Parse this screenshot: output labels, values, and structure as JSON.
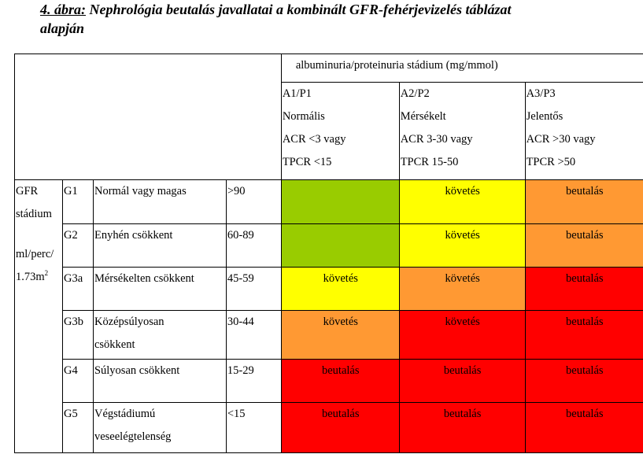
{
  "caption": {
    "figure_label": "4. ábra:",
    "text_line1": " Nephrológia beutalás javallatai a kombinált GFR-fehérjevizelés táblázat",
    "text_line2": "alapján"
  },
  "header": {
    "albuminuria_title": "albuminuria/proteinuria stádium (mg/mmol)",
    "columns": [
      {
        "code": "A1/P1",
        "name": "Normális",
        "acr": "ACR <3 vagy",
        "tpcr": "TPCR <15"
      },
      {
        "code": "A2/P2",
        "name": "Mérsékelt",
        "acr": "ACR 3-30 vagy",
        "tpcr": "TPCR 15-50"
      },
      {
        "code": "A3/P3",
        "name": "Jelentős",
        "acr": "ACR >30 vagy",
        "tpcr": "TPCR >50"
      }
    ]
  },
  "row_header": {
    "line1": "GFR",
    "line2": "stádium",
    "line3": "ml/perc/",
    "line4": "1.73m",
    "sup": "2"
  },
  "rows": [
    {
      "stage": "G1",
      "desc": "Normál vagy magas",
      "desc2": "",
      "range": ">90",
      "cells": [
        {
          "label": "",
          "color": "green"
        },
        {
          "label": "követés",
          "color": "yellow"
        },
        {
          "label": "beutalás",
          "color": "orange"
        }
      ]
    },
    {
      "stage": "G2",
      "desc": "Enyhén csökkent",
      "desc2": "",
      "range": "60-89",
      "cells": [
        {
          "label": "",
          "color": "green"
        },
        {
          "label": "követés",
          "color": "yellow"
        },
        {
          "label": "beutalás",
          "color": "orange"
        }
      ]
    },
    {
      "stage": "G3a",
      "desc": "Mérsékelten csökkent",
      "desc2": "",
      "range": "45-59",
      "cells": [
        {
          "label": "követés",
          "color": "yellow"
        },
        {
          "label": "követés",
          "color": "orange"
        },
        {
          "label": "beutalás",
          "color": "red"
        }
      ]
    },
    {
      "stage": "G3b",
      "desc": "Középsúlyosan",
      "desc2": "csökkent",
      "range": "30-44",
      "cells": [
        {
          "label": "követés",
          "color": "orange"
        },
        {
          "label": "követés",
          "color": "red"
        },
        {
          "label": "beutalás",
          "color": "red"
        }
      ]
    },
    {
      "stage": "G4",
      "desc": "Súlyosan csökkent",
      "desc2": "",
      "range": "15-29",
      "cells": [
        {
          "label": "beutalás",
          "color": "red"
        },
        {
          "label": "beutalás",
          "color": "red"
        },
        {
          "label": "beutalás",
          "color": "red"
        }
      ]
    },
    {
      "stage": "G5",
      "desc": "Végstádiumú",
      "desc2": "veseelégtelenség",
      "range": "<15",
      "cells": [
        {
          "label": "beutalás",
          "color": "red"
        },
        {
          "label": "beutalás",
          "color": "red"
        },
        {
          "label": "beutalás",
          "color": "red"
        }
      ]
    }
  ]
}
